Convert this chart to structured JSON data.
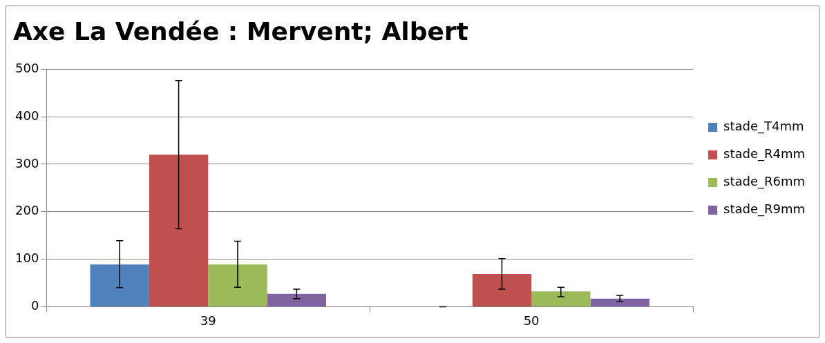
{
  "chart_data": {
    "type": "bar",
    "title": "Axe La Vendée : Mervent; Albert",
    "categories": [
      "39",
      "50"
    ],
    "series": [
      {
        "name": "stade_T4mm",
        "color": "#4f81bd",
        "values": [
          89,
          0
        ],
        "errors": [
          [
            40,
            139
          ],
          [
            0,
            0
          ]
        ]
      },
      {
        "name": "stade_R4mm",
        "color": "#c0504d",
        "values": [
          320,
          69
        ],
        "errors": [
          [
            164,
            476
          ],
          [
            37,
            101
          ]
        ]
      },
      {
        "name": "stade_R6mm",
        "color": "#9bbb59",
        "values": [
          89,
          32
        ],
        "errors": [
          [
            41,
            138
          ],
          [
            21,
            41
          ]
        ]
      },
      {
        "name": "stade_R9mm",
        "color": "#8064a2",
        "values": [
          27,
          17
        ],
        "errors": [
          [
            17,
            37
          ],
          [
            11,
            24
          ]
        ]
      }
    ],
    "ylim": [
      0,
      500
    ],
    "yticks": [
      0,
      100,
      200,
      300,
      400,
      500
    ],
    "grid": "y",
    "legend": "right"
  }
}
